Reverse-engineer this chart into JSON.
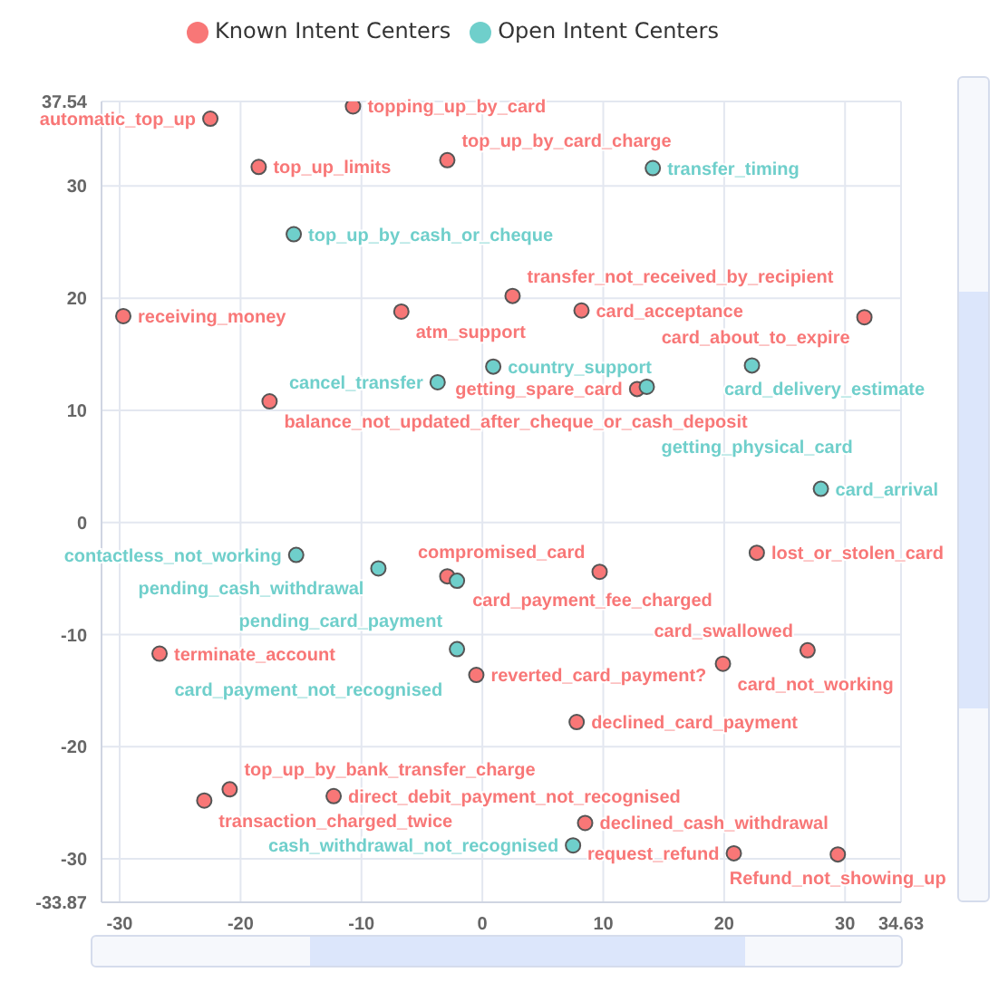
{
  "chart_data": {
    "type": "scatter",
    "legend": "top",
    "grid": true,
    "marker": "circle",
    "xlim": [
      -31.5,
      34.63
    ],
    "xticks": [
      -30,
      -20,
      -10,
      0,
      10,
      20,
      30,
      34.63
    ],
    "ylim": [
      -33.87,
      37.54
    ],
    "yticks": [
      -33.87,
      -30,
      -20,
      -10,
      0,
      10,
      20,
      30,
      37.54
    ],
    "series": [
      {
        "name": "Known Intent Centers",
        "color": "#f87777",
        "x": [
          -10.7,
          -22.5,
          -18.5,
          -2.9,
          2.5,
          8.2,
          31.6,
          -29.7,
          -6.7,
          -17.6,
          12.8,
          -2.9,
          -0.5,
          -26.7,
          -20.9,
          -23.0,
          -12.3,
          22.7,
          9.7,
          26.9,
          19.9,
          7.8,
          8.5,
          20.8,
          29.4
        ],
        "values": [
          37.1,
          36.0,
          31.7,
          32.3,
          20.2,
          18.9,
          18.3,
          18.4,
          18.8,
          10.8,
          11.9,
          -4.8,
          -13.6,
          -11.7,
          -23.8,
          -24.8,
          -24.4,
          -2.7,
          -4.4,
          -11.4,
          -12.6,
          -17.8,
          -26.8,
          -29.5,
          -29.6
        ],
        "value_labels": [
          "topping_up_by_card",
          "automatic_top_up",
          "top_up_limits",
          "top_up_by_card_charge",
          "transfer_not_received_by_recipient",
          "card_acceptance",
          "card_about_to_expire",
          "receiving_money",
          "atm_support",
          "balance_not_updated_after_cheque_or_cash_deposit",
          "getting_spare_card",
          "card_payment_fee_charged",
          "reverted_card_payment?",
          "terminate_account",
          "top_up_by_bank_transfer_charge",
          "transaction_charged_twice",
          "direct_debit_payment_not_recognised",
          "lost_or_stolen_card",
          "compromised_card",
          "card_swallowed",
          "card_not_working",
          "declined_card_payment",
          "declined_cash_withdrawal",
          "request_refund",
          "Refund_not_showing_up"
        ]
      },
      {
        "name": "Open Intent Centers",
        "color": "#6fcfcb",
        "x": [
          14.1,
          -15.6,
          0.9,
          22.3,
          -3.7,
          13.6,
          28.0,
          -15.4,
          -8.6,
          -2.1,
          -2.1,
          7.5
        ],
        "values": [
          31.6,
          25.7,
          13.9,
          14.0,
          12.5,
          12.1,
          3.0,
          -2.9,
          -4.1,
          -5.2,
          -11.3,
          -28.8
        ],
        "value_labels": [
          "transfer_timing",
          "top_up_by_cash_or_cheque",
          "country_support",
          "card_delivery_estimate",
          "cancel_transfer",
          "getting_physical_card",
          "card_arrival",
          "contactless_not_working",
          "pending_cash_withdrawal",
          "pending_card_payment",
          "card_payment_not_recognised",
          "cash_withdrawal_not_recognised"
        ]
      }
    ]
  }
}
